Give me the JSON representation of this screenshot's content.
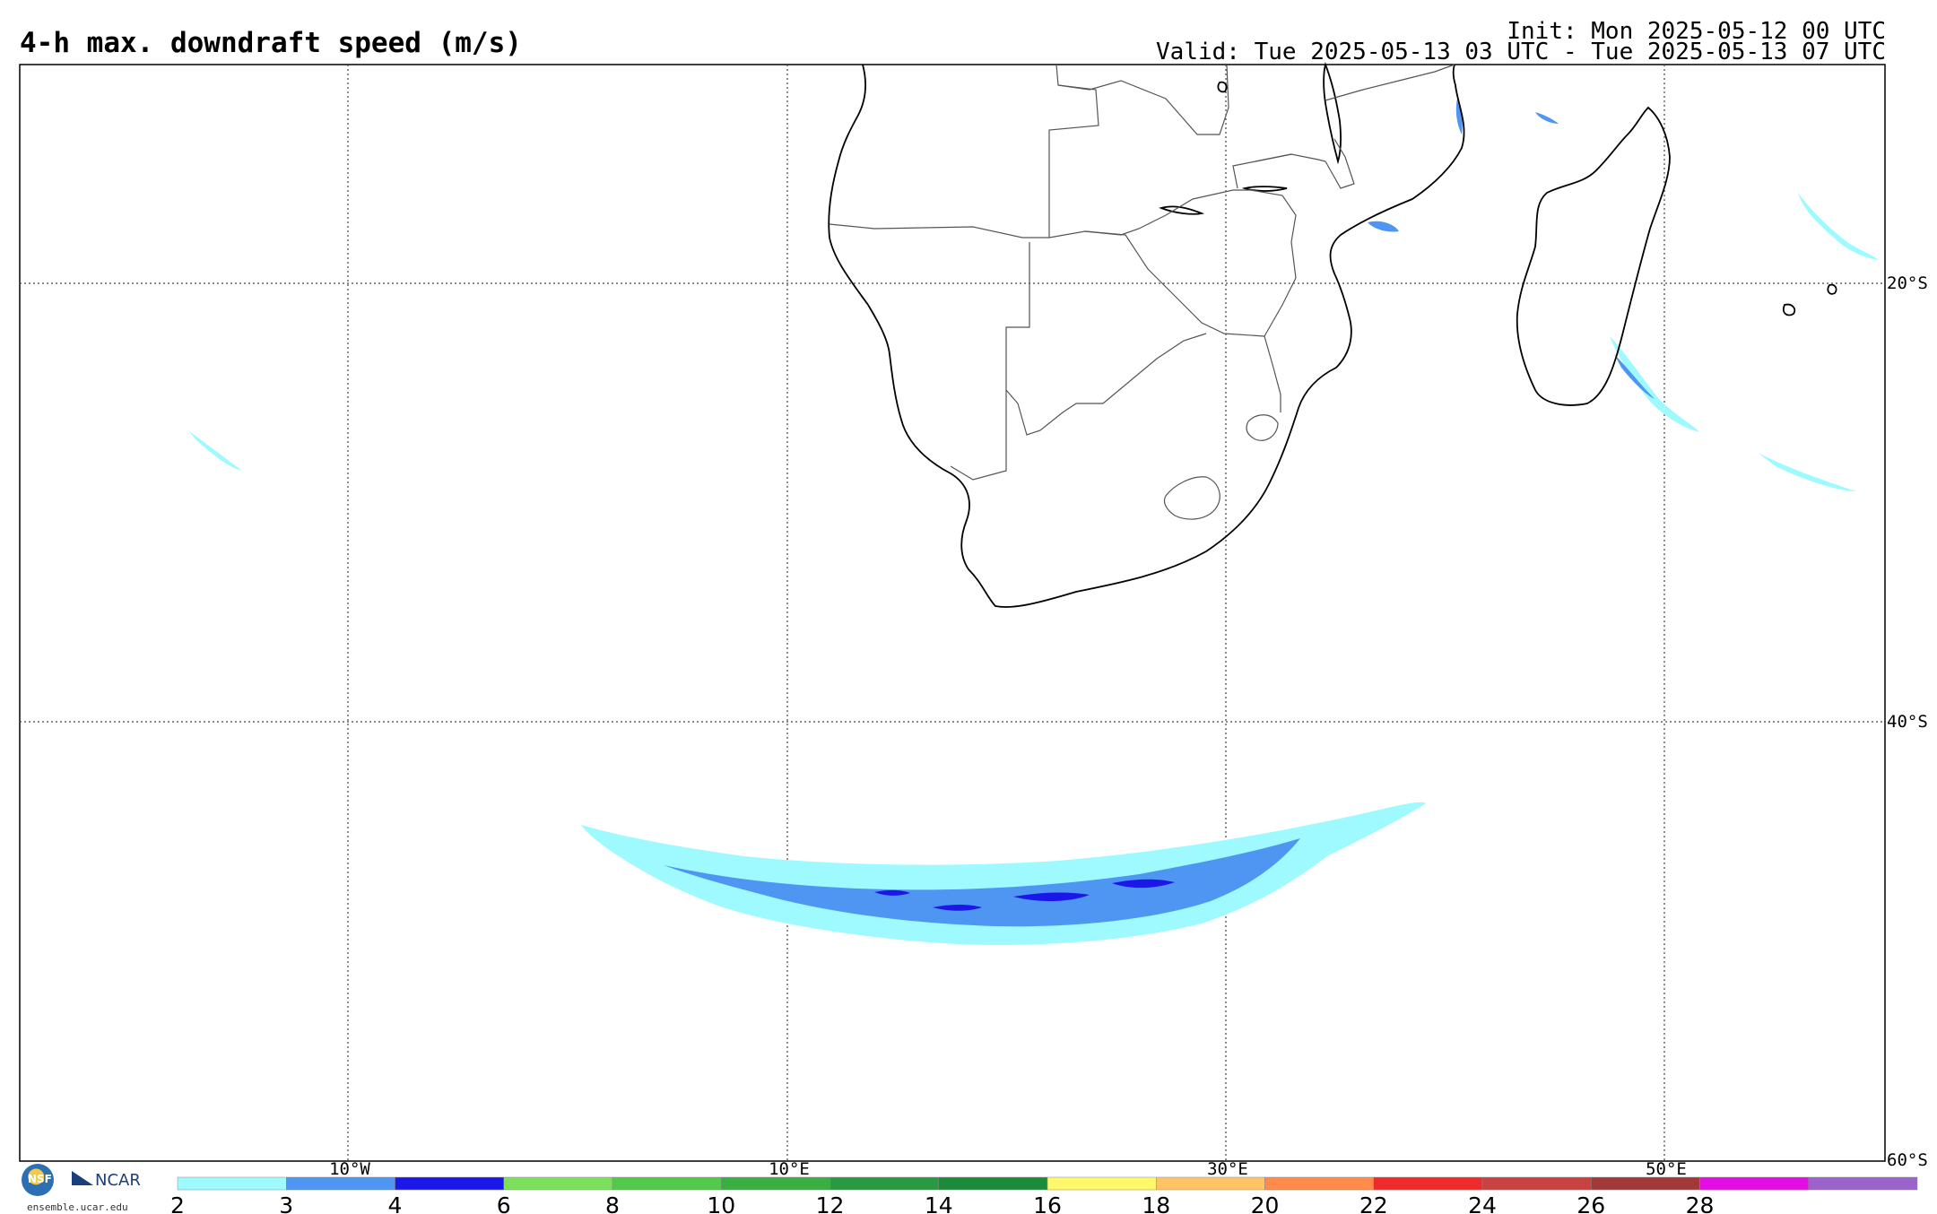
{
  "header": {
    "title": "4-h max. downdraft speed (m/s)",
    "init": "Init: Mon 2025-05-12 00 UTC",
    "valid": "Valid: Tue 2025-05-13 03 UTC - Tue 2025-05-13 07 UTC"
  },
  "map": {
    "lon_labels": [
      "10°W",
      "10°E",
      "30°E",
      "50°E"
    ],
    "lat_labels": [
      "20°S",
      "40°S",
      "60°S"
    ],
    "land_color": "#ffffff",
    "border_color": "#555555",
    "coast_color": "#000000"
  },
  "colorbar": {
    "ticks": [
      "2",
      "3",
      "4",
      "6",
      "8",
      "10",
      "12",
      "14",
      "16",
      "18",
      "20",
      "22",
      "24",
      "26",
      "28"
    ],
    "colors": [
      "#9ffaff",
      "#4f96f2",
      "#1a17e8",
      "#7bdf5c",
      "#52c94a",
      "#3aad43",
      "#2a9a42",
      "#1e8a3c",
      "#fff86a",
      "#ffc264",
      "#ff8a4a",
      "#ee2a2a",
      "#c94242",
      "#a33838",
      "#e40ee4",
      "#9a64cc"
    ]
  },
  "logos": {
    "nsf": "NSF",
    "ncar": "NCAR",
    "url": "ensemble.ucar.edu"
  }
}
